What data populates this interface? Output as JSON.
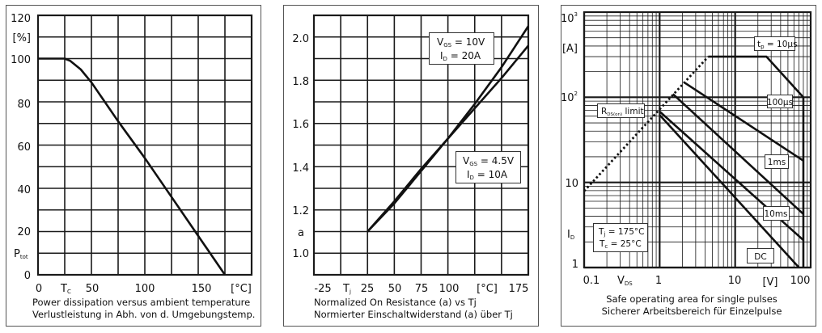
{
  "colors": {
    "grid": "#1a1a1a",
    "curve": "#111111",
    "panel_border": "#555555",
    "background": "#ffffff"
  },
  "chart_data": [
    {
      "type": "line",
      "caption": [
        "Power dissipation versus ambient temperature",
        "Verlustleistung in Abh. von d. Umgebungstemp."
      ],
      "ylabel": {
        "main": "P",
        "sub": "tot"
      },
      "yunit": "[%]",
      "xlabel": {
        "main": "T",
        "sub": "C"
      },
      "xunit": "[°C]",
      "xlim": [
        0,
        200
      ],
      "ylim": [
        0,
        120
      ],
      "grid": true,
      "xticks": [
        "0",
        "50",
        "100",
        "150"
      ],
      "yticks": [
        "120",
        "100",
        "80",
        "60",
        "40",
        "20",
        "0"
      ],
      "series": [
        {
          "x": [
            0,
            25,
            30,
            40,
            50,
            75,
            100,
            125,
            150,
            175
          ],
          "y": [
            100,
            100,
            99,
            95,
            89,
            71,
            54,
            36,
            18,
            0
          ]
        }
      ]
    },
    {
      "type": "line",
      "caption": [
        "Normalized On Resistance (a) vs Tj",
        "Normierter Einschaltwiderstand (a) über Tj"
      ],
      "ylabel": "a",
      "xlabel": {
        "main": "T",
        "sub": "j"
      },
      "xunit": "[°C]",
      "xlim": [
        -25,
        175
      ],
      "ylim": [
        0.9,
        2.1
      ],
      "grid": true,
      "xticks": [
        "-25",
        "25",
        "50",
        "75",
        "100",
        "175"
      ],
      "yticks": [
        "2.0",
        "1.8",
        "1.6",
        "1.4",
        "1.2",
        "1.0"
      ],
      "annotations": [
        {
          "line1": {
            "main": "V",
            "sub": "GS",
            "rest": " = 10V"
          },
          "line2": {
            "main": "I",
            "sub": "D",
            "rest": " = 20A"
          }
        },
        {
          "line1": {
            "main": "V",
            "sub": "GS",
            "rest": " = 4.5V"
          },
          "line2": {
            "main": "I",
            "sub": "D",
            "rest": " = 10A"
          }
        }
      ],
      "series": [
        {
          "x": [
            25,
            50,
            75,
            100,
            125,
            150,
            175
          ],
          "y": [
            1.1,
            1.23,
            1.38,
            1.53,
            1.69,
            1.86,
            2.05
          ]
        },
        {
          "x": [
            25,
            50,
            75,
            100,
            125,
            150,
            175
          ],
          "y": [
            1.1,
            1.24,
            1.39,
            1.53,
            1.67,
            1.81,
            1.96
          ]
        }
      ]
    },
    {
      "type": "line",
      "caption": [
        "Safe operating area for single pulses",
        "Sicherer Arbeitsbereich für Einzelpulse"
      ],
      "ylabel": {
        "main": "I",
        "sub": "D"
      },
      "yunit": "[A]",
      "xlabel": {
        "main": "V",
        "sub": "DS"
      },
      "xunit": "[V]",
      "xscale": "log",
      "yscale": "log",
      "xlim": [
        0.1,
        100
      ],
      "ylim": [
        1,
        1000
      ],
      "grid": true,
      "xticks": [
        "0.1",
        "1",
        "10",
        "100"
      ],
      "yticks": [
        {
          "main": "10",
          "sup": "3"
        },
        {
          "main": "10",
          "sup": "2"
        },
        {
          "main": "10",
          "sup": ""
        },
        {
          "main": "1",
          "sup": ""
        }
      ],
      "conditions": {
        "line1": {
          "main": "T",
          "sub": "j",
          "rest": " = 175°C"
        },
        "line2": {
          "main": "T",
          "sub": "c",
          "rest": " = 25°C"
        }
      },
      "rds_label": {
        "main": "R",
        "sub": "DS(on)",
        "rest": " limit"
      },
      "series": [
        {
          "name": "R_DS(on) limit",
          "style": "dotted",
          "x": [
            0.1,
            4.4
          ],
          "y": [
            7.9,
            300
          ]
        },
        {
          "name": "t_p = 10µs",
          "label": {
            "main": "t",
            "sub": "p",
            "rest": " = 10µs"
          },
          "x": [
            4.4,
            26,
            80,
            80
          ],
          "y": [
            300,
            300,
            100,
            1
          ]
        },
        {
          "name": "100µs",
          "label": "100µs",
          "x": [
            2.15,
            80
          ],
          "y": [
            148,
            18
          ]
        },
        {
          "name": "1ms",
          "label": "1ms",
          "x": [
            1.5,
            80
          ],
          "y": [
            109,
            4.25
          ]
        },
        {
          "name": "10ms",
          "label": "10ms",
          "x": [
            1.0,
            80
          ],
          "y": [
            68,
            2.1
          ]
        },
        {
          "name": "DC",
          "label": "DC",
          "x": [
            1.0,
            70
          ],
          "y": [
            62,
            1
          ]
        }
      ]
    }
  ]
}
